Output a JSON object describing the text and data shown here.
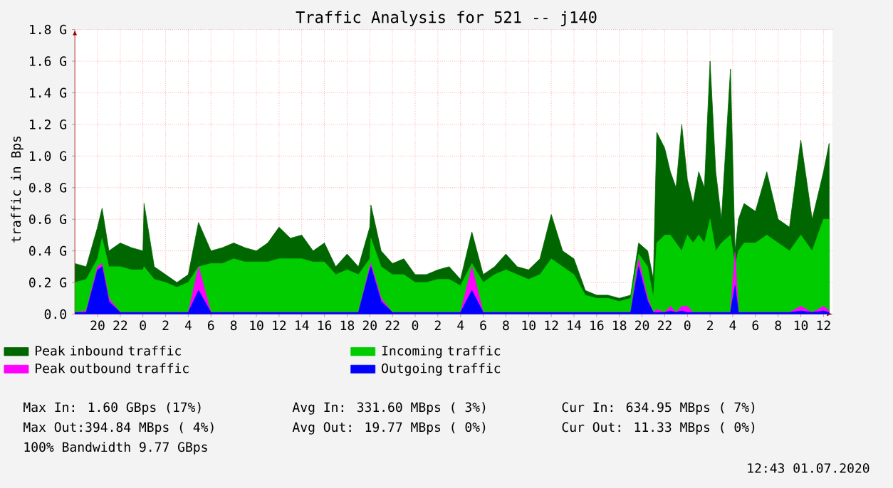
{
  "chart_data": {
    "type": "area",
    "title": "Traffic Analysis for 521 -- j140",
    "ylabel": "traffic in Bps",
    "x": [
      "2020-06-28T18:00",
      "2020-06-28T19:00",
      "2020-06-28T20:00",
      "2020-06-28T20:24",
      "2020-06-28T21:00",
      "2020-06-28T22:00",
      "2020-06-28T23:00",
      "2020-06-29T00:00",
      "2020-06-29T00:06",
      "2020-06-29T01:00",
      "2020-06-29T02:00",
      "2020-06-29T03:00",
      "2020-06-29T04:00",
      "2020-06-29T04:54",
      "2020-06-29T06:00",
      "2020-06-29T07:00",
      "2020-06-29T08:00",
      "2020-06-29T09:00",
      "2020-06-29T10:00",
      "2020-06-29T11:00",
      "2020-06-29T12:00",
      "2020-06-29T13:00",
      "2020-06-29T14:00",
      "2020-06-29T15:00",
      "2020-06-29T16:00",
      "2020-06-29T17:00",
      "2020-06-29T18:00",
      "2020-06-29T19:00",
      "2020-06-29T20:00",
      "2020-06-29T20:06",
      "2020-06-29T21:00",
      "2020-06-29T22:00",
      "2020-06-29T23:00",
      "2020-06-30T00:00",
      "2020-06-30T01:00",
      "2020-06-30T02:00",
      "2020-06-30T03:00",
      "2020-06-30T04:00",
      "2020-06-30T05:00",
      "2020-06-30T06:00",
      "2020-06-30T07:00",
      "2020-06-30T08:00",
      "2020-06-30T09:00",
      "2020-06-30T10:00",
      "2020-06-30T11:00",
      "2020-06-30T12:00",
      "2020-06-30T13:00",
      "2020-06-30T14:00",
      "2020-06-30T15:00",
      "2020-06-30T16:00",
      "2020-06-30T17:00",
      "2020-06-30T18:00",
      "2020-06-30T19:00",
      "2020-06-30T19:42",
      "2020-06-30T20:30",
      "2020-06-30T21:00",
      "2020-06-30T21:18",
      "2020-06-30T22:00",
      "2020-06-30T22:30",
      "2020-06-30T23:00",
      "2020-06-30T23:30",
      "2020-07-01T00:00",
      "2020-07-01T00:30",
      "2020-07-01T01:00",
      "2020-07-01T01:30",
      "2020-07-01T02:00",
      "2020-07-01T02:30",
      "2020-07-01T03:00",
      "2020-07-01T03:48",
      "2020-07-01T04:12",
      "2020-07-01T04:30",
      "2020-07-01T05:00",
      "2020-07-01T06:00",
      "2020-07-01T07:00",
      "2020-07-01T08:00",
      "2020-07-01T09:00",
      "2020-07-01T10:00",
      "2020-07-01T11:00",
      "2020-07-01T12:00",
      "2020-07-01T12:30"
    ],
    "series": [
      {
        "name": "Peak inbound traffic",
        "color": "#006600",
        "values": [
          0.32,
          0.3,
          0.55,
          0.67,
          0.4,
          0.45,
          0.42,
          0.4,
          0.7,
          0.3,
          0.25,
          0.2,
          0.25,
          0.58,
          0.4,
          0.42,
          0.45,
          0.42,
          0.4,
          0.45,
          0.55,
          0.48,
          0.5,
          0.4,
          0.45,
          0.3,
          0.38,
          0.3,
          0.55,
          0.69,
          0.4,
          0.32,
          0.35,
          0.25,
          0.25,
          0.28,
          0.3,
          0.22,
          0.52,
          0.25,
          0.3,
          0.38,
          0.3,
          0.28,
          0.35,
          0.63,
          0.4,
          0.35,
          0.15,
          0.12,
          0.12,
          0.1,
          0.12,
          0.45,
          0.4,
          0.22,
          1.15,
          1.05,
          0.9,
          0.8,
          1.2,
          0.85,
          0.7,
          0.9,
          0.8,
          1.6,
          0.9,
          0.6,
          1.55,
          0.4,
          0.6,
          0.7,
          0.65,
          0.9,
          0.6,
          0.55,
          1.1,
          0.6,
          0.9,
          1.08
        ]
      },
      {
        "name": "Incoming traffic",
        "color": "#00cc00",
        "values": [
          0.2,
          0.22,
          0.35,
          0.48,
          0.3,
          0.3,
          0.28,
          0.28,
          0.3,
          0.22,
          0.2,
          0.17,
          0.2,
          0.3,
          0.32,
          0.32,
          0.35,
          0.33,
          0.33,
          0.33,
          0.35,
          0.35,
          0.35,
          0.33,
          0.33,
          0.25,
          0.28,
          0.25,
          0.35,
          0.48,
          0.3,
          0.25,
          0.25,
          0.2,
          0.2,
          0.22,
          0.22,
          0.18,
          0.32,
          0.2,
          0.25,
          0.28,
          0.25,
          0.22,
          0.25,
          0.35,
          0.3,
          0.25,
          0.12,
          0.1,
          0.1,
          0.08,
          0.1,
          0.38,
          0.3,
          0.1,
          0.45,
          0.5,
          0.5,
          0.45,
          0.4,
          0.5,
          0.45,
          0.5,
          0.45,
          0.6,
          0.4,
          0.45,
          0.5,
          0.3,
          0.4,
          0.45,
          0.45,
          0.5,
          0.45,
          0.4,
          0.5,
          0.4,
          0.6,
          0.6
        ]
      },
      {
        "name": "Peak outbound traffic",
        "color": "#ff00ff",
        "values": [
          0.01,
          0.02,
          0.3,
          0.32,
          0.1,
          0.01,
          0.01,
          0.01,
          0.01,
          0.01,
          0.01,
          0.01,
          0.01,
          0.3,
          0.01,
          0.01,
          0.01,
          0.01,
          0.01,
          0.01,
          0.01,
          0.01,
          0.01,
          0.01,
          0.01,
          0.01,
          0.01,
          0.01,
          0.3,
          0.32,
          0.1,
          0.01,
          0.01,
          0.01,
          0.01,
          0.01,
          0.01,
          0.01,
          0.3,
          0.01,
          0.01,
          0.01,
          0.01,
          0.01,
          0.01,
          0.01,
          0.01,
          0.01,
          0.01,
          0.01,
          0.01,
          0.01,
          0.01,
          0.35,
          0.1,
          0.01,
          0.03,
          0.01,
          0.05,
          0.01,
          0.05,
          0.05,
          0.01,
          0.01,
          0.01,
          0.01,
          0.01,
          0.01,
          0.01,
          0.39,
          0.01,
          0.01,
          0.01,
          0.01,
          0.01,
          0.01,
          0.05,
          0.01,
          0.05,
          0.02
        ]
      },
      {
        "name": "Outgoing traffic",
        "color": "#0000ff",
        "values": [
          0.01,
          0.01,
          0.28,
          0.3,
          0.08,
          0.01,
          0.01,
          0.01,
          0.01,
          0.01,
          0.01,
          0.01,
          0.01,
          0.15,
          0.01,
          0.01,
          0.01,
          0.01,
          0.01,
          0.01,
          0.01,
          0.01,
          0.01,
          0.01,
          0.01,
          0.01,
          0.01,
          0.01,
          0.28,
          0.3,
          0.08,
          0.01,
          0.01,
          0.01,
          0.01,
          0.01,
          0.01,
          0.01,
          0.15,
          0.01,
          0.01,
          0.01,
          0.01,
          0.01,
          0.01,
          0.01,
          0.01,
          0.01,
          0.01,
          0.01,
          0.01,
          0.01,
          0.01,
          0.3,
          0.08,
          0.01,
          0.01,
          0.01,
          0.02,
          0.01,
          0.02,
          0.01,
          0.01,
          0.01,
          0.01,
          0.01,
          0.01,
          0.01,
          0.01,
          0.18,
          0.01,
          0.01,
          0.01,
          0.01,
          0.01,
          0.01,
          0.02,
          0.01,
          0.02,
          0.01
        ]
      }
    ],
    "xlim": [
      "2020-06-28T18:00",
      "2020-07-01T12:48"
    ],
    "xticks": [
      {
        "value": "2020-06-28T20:00",
        "label": "20"
      },
      {
        "value": "2020-06-28T22:00",
        "label": "22"
      },
      {
        "value": "2020-06-29T00:00",
        "label": "0"
      },
      {
        "value": "2020-06-29T02:00",
        "label": "2"
      },
      {
        "value": "2020-06-29T04:00",
        "label": "4"
      },
      {
        "value": "2020-06-29T06:00",
        "label": "6"
      },
      {
        "value": "2020-06-29T08:00",
        "label": "8"
      },
      {
        "value": "2020-06-29T10:00",
        "label": "10"
      },
      {
        "value": "2020-06-29T12:00",
        "label": "12"
      },
      {
        "value": "2020-06-29T14:00",
        "label": "14"
      },
      {
        "value": "2020-06-29T16:00",
        "label": "16"
      },
      {
        "value": "2020-06-29T18:00",
        "label": "18"
      },
      {
        "value": "2020-06-29T20:00",
        "label": "20"
      },
      {
        "value": "2020-06-29T22:00",
        "label": "22"
      },
      {
        "value": "2020-06-30T00:00",
        "label": "0"
      },
      {
        "value": "2020-06-30T02:00",
        "label": "2"
      },
      {
        "value": "2020-06-30T04:00",
        "label": "4"
      },
      {
        "value": "2020-06-30T06:00",
        "label": "6"
      },
      {
        "value": "2020-06-30T08:00",
        "label": "8"
      },
      {
        "value": "2020-06-30T10:00",
        "label": "10"
      },
      {
        "value": "2020-06-30T12:00",
        "label": "12"
      },
      {
        "value": "2020-06-30T14:00",
        "label": "14"
      },
      {
        "value": "2020-06-30T16:00",
        "label": "16"
      },
      {
        "value": "2020-06-30T18:00",
        "label": "18"
      },
      {
        "value": "2020-06-30T20:00",
        "label": "20"
      },
      {
        "value": "2020-06-30T22:00",
        "label": "22"
      },
      {
        "value": "2020-07-01T00:00",
        "label": "0"
      },
      {
        "value": "2020-07-01T02:00",
        "label": "2"
      },
      {
        "value": "2020-07-01T04:00",
        "label": "4"
      },
      {
        "value": "2020-07-01T06:00",
        "label": "6"
      },
      {
        "value": "2020-07-01T08:00",
        "label": "8"
      },
      {
        "value": "2020-07-01T10:00",
        "label": "10"
      },
      {
        "value": "2020-07-01T12:00",
        "label": "12"
      }
    ],
    "ylim": [
      0,
      1.8
    ],
    "yticks": [
      {
        "value": 0,
        "label": "0.0"
      },
      {
        "value": 0.2,
        "label": "0.2 G"
      },
      {
        "value": 0.4,
        "label": "0.4 G"
      },
      {
        "value": 0.6,
        "label": "0.6 G"
      },
      {
        "value": 0.8,
        "label": "0.8 G"
      },
      {
        "value": 1.0,
        "label": "1.0 G"
      },
      {
        "value": 1.2,
        "label": "1.2 G"
      },
      {
        "value": 1.4,
        "label": "1.4 G"
      },
      {
        "value": 1.6,
        "label": "1.6 G"
      },
      {
        "value": 1.8,
        "label": "1.8 G"
      }
    ],
    "grid": true,
    "legend": "bottom",
    "annotations": [
      "Max In:   1.60 GBps (17%)",
      "Avg In: 331.60 MBps ( 3%)",
      "Cur In: 634.95 MBps ( 7%)",
      "Max Out:394.84 MBps ( 4%)",
      "Avg Out: 19.77 MBps ( 0%)",
      "Cur Out: 11.33 MBps ( 0%)",
      "100% Bandwidth 9.77 GBps",
      "12:43 01.07.2020"
    ]
  }
}
